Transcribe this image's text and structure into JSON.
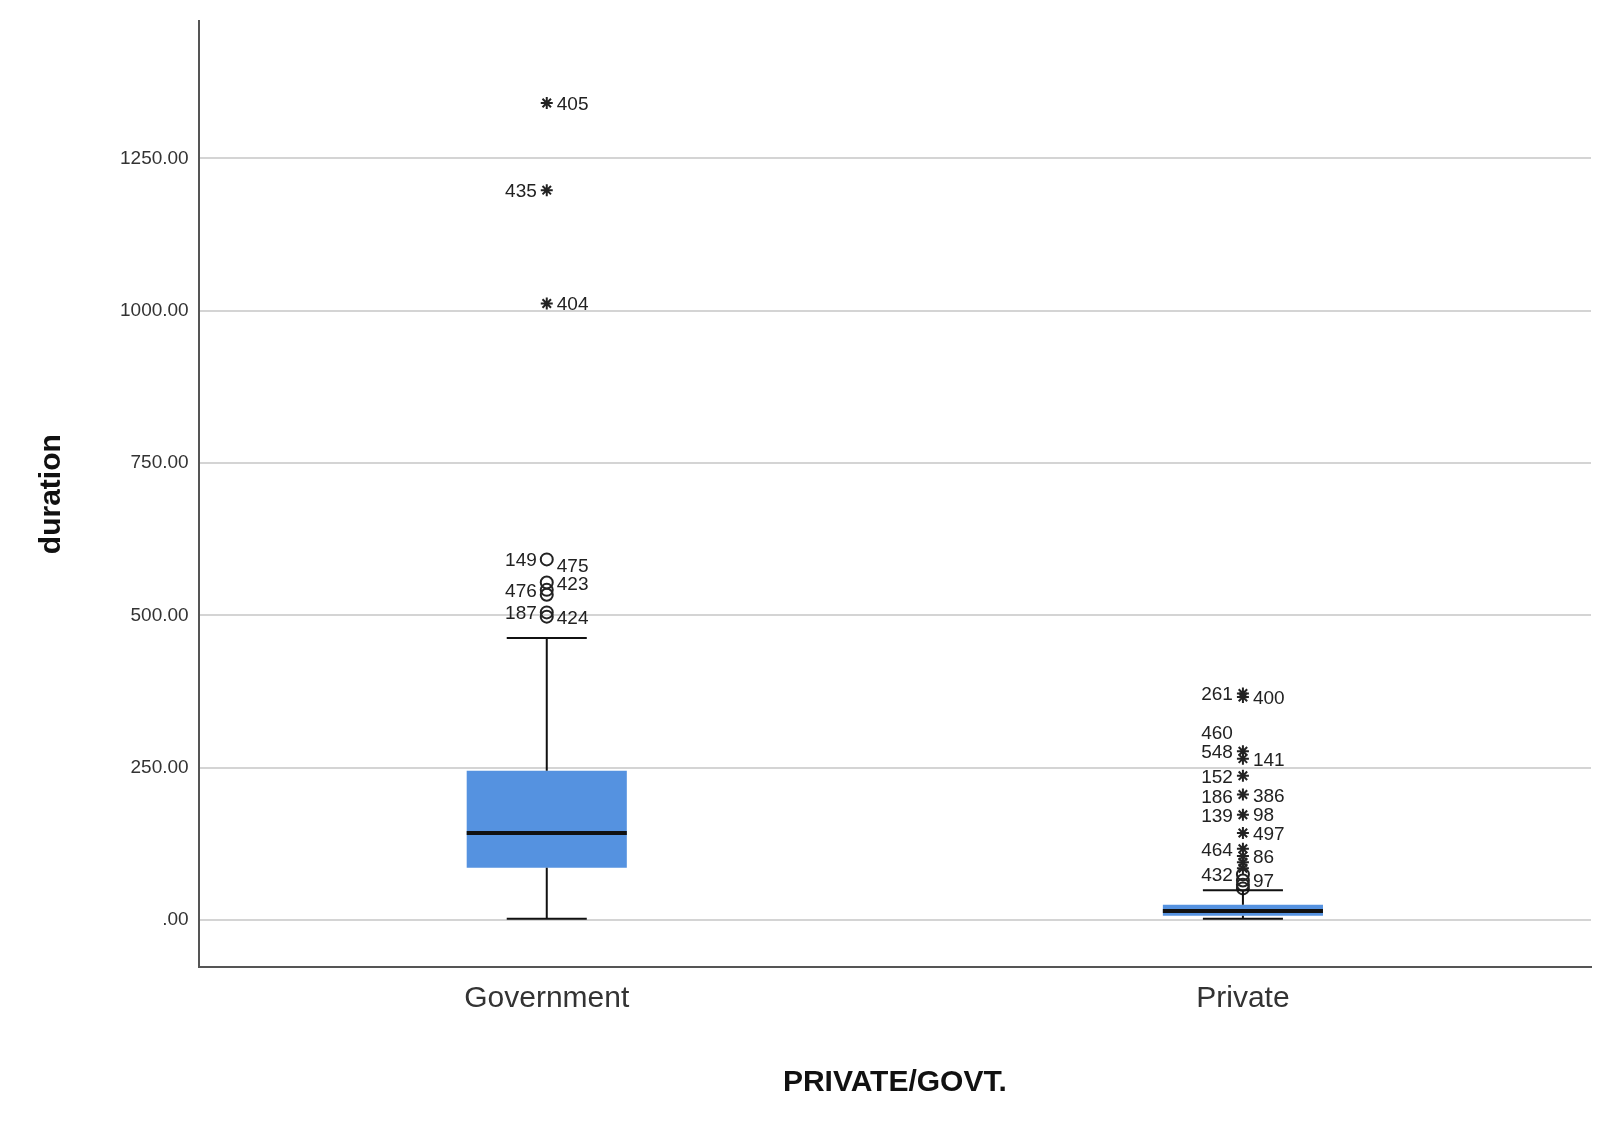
{
  "chart_data": {
    "type": "box",
    "xlabel": "PRIVATE/GOVT.",
    "ylabel": "duration",
    "categories": [
      "Government",
      "Private"
    ],
    "color": "#5592e0",
    "boxes": [
      {
        "low": 2,
        "q1": 86,
        "median": 143,
        "q3": 245,
        "high": 463,
        "outliers": [
          1341,
          1198,
          1012,
          592,
          554,
          542,
          534,
          505,
          498
        ]
      },
      {
        "low": 2,
        "q1": 7,
        "median": 15,
        "q3": 25,
        "high": 49,
        "outliers": [
          372,
          366,
          277,
          265,
          237,
          206,
          173,
          143,
          117,
          105,
          95,
          85,
          75,
          65,
          58,
          52
        ]
      }
    ],
    "ylim": [
      -77,
      1475
    ],
    "yticks": [
      {
        "value": 0,
        "label": ".00"
      },
      {
        "value": 250,
        "label": "250.00"
      },
      {
        "value": 500,
        "label": "500.00"
      },
      {
        "value": 750,
        "label": "750.00"
      },
      {
        "value": 1000,
        "label": "1000.00"
      },
      {
        "value": 1250,
        "label": "1250.00"
      }
    ],
    "grid": "y",
    "annotations": [
      "405",
      "435",
      "404",
      "149",
      "423",
      "476",
      "475",
      "187",
      "424",
      "261",
      "400",
      "548",
      "141",
      "152",
      "386",
      "139",
      "497",
      "464",
      "86",
      "186",
      "98",
      "432",
      "97",
      "460"
    ]
  }
}
